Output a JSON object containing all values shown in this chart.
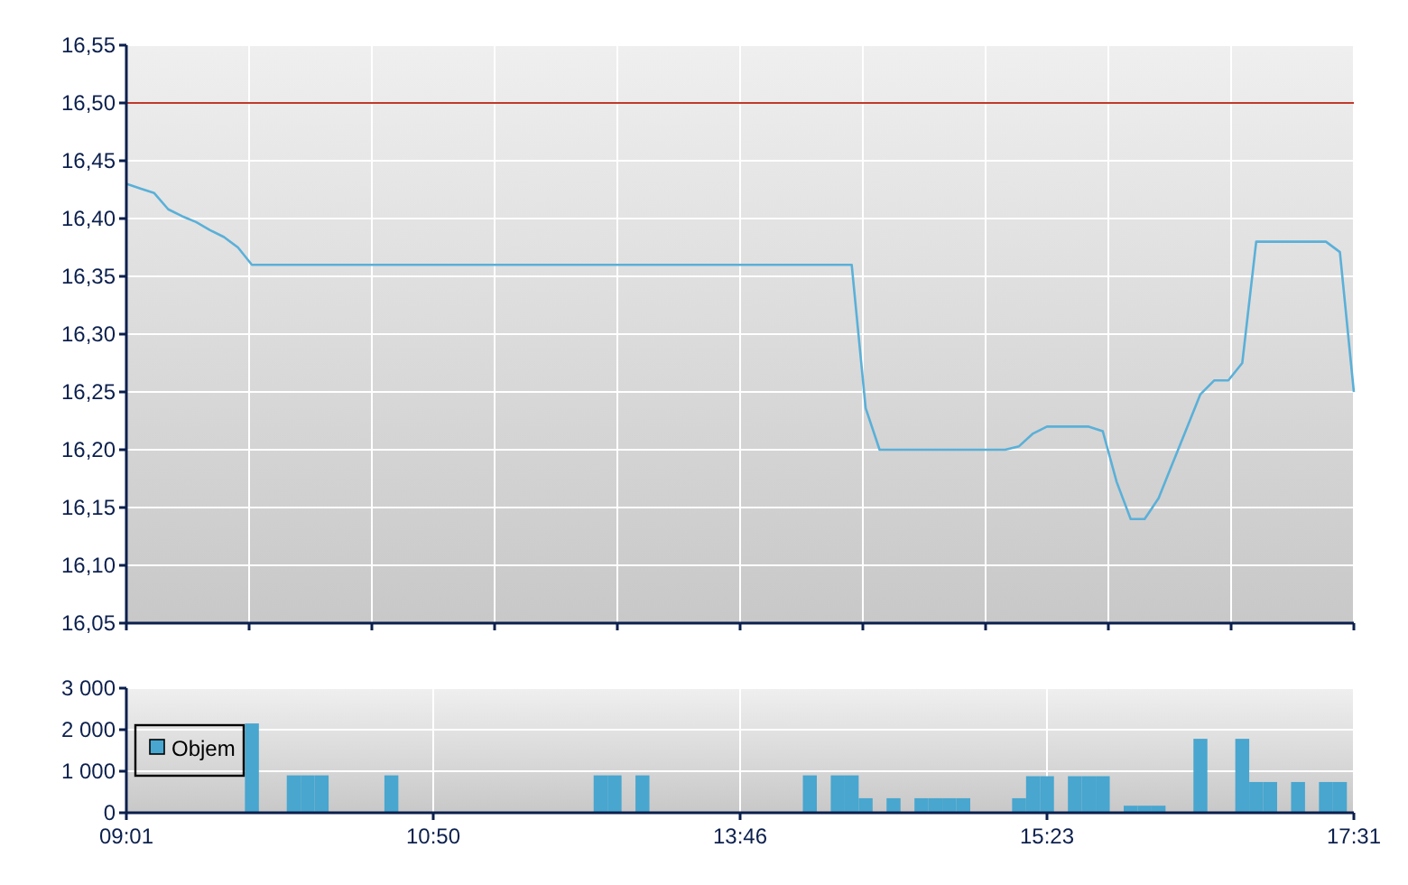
{
  "chart_data": [
    {
      "type": "line",
      "categories": [
        null,
        null,
        null,
        null,
        null,
        null,
        null,
        null,
        null,
        null,
        null,
        null,
        null,
        null,
        null,
        null,
        null,
        null,
        null,
        null,
        null,
        null,
        null,
        null,
        null,
        null,
        null,
        null,
        null,
        null,
        null,
        null,
        null,
        null,
        null,
        null,
        null,
        null,
        null,
        null,
        null,
        null,
        null,
        null,
        null,
        null,
        null,
        null,
        null,
        null,
        null,
        null,
        null,
        null,
        null,
        null,
        null,
        null,
        null,
        null,
        null,
        null,
        null,
        null,
        null,
        null,
        null,
        null,
        null,
        null,
        null,
        null,
        null,
        null,
        null,
        null,
        null,
        null,
        null,
        null,
        null,
        null,
        null,
        null,
        null,
        null,
        null,
        null,
        null
      ],
      "series": [
        {
          "color": "#5ab0d8",
          "values": [
            16.43,
            16.426,
            16.422,
            16.408,
            16.402,
            16.397,
            16.39,
            16.384,
            16.375,
            16.36,
            16.36,
            16.36,
            16.36,
            16.36,
            16.36,
            16.36,
            16.36,
            16.36,
            16.36,
            16.36,
            16.36,
            16.36,
            16.36,
            16.36,
            16.36,
            16.36,
            16.36,
            16.36,
            16.36,
            16.36,
            16.36,
            16.36,
            16.36,
            16.36,
            16.36,
            16.36,
            16.36,
            16.36,
            16.36,
            16.36,
            16.36,
            16.36,
            16.36,
            16.36,
            16.36,
            16.36,
            16.36,
            16.36,
            16.36,
            16.36,
            16.36,
            16.36,
            16.36,
            16.236,
            16.2,
            16.2,
            16.2,
            16.2,
            16.2,
            16.2,
            16.2,
            16.2,
            16.2,
            16.2,
            16.203,
            16.214,
            16.22,
            16.22,
            16.22,
            16.22,
            16.216,
            16.172,
            16.14,
            16.14,
            16.158,
            16.188,
            16.218,
            16.248,
            16.26,
            16.26,
            16.275,
            16.38,
            16.38,
            16.38,
            16.38,
            16.38,
            16.38,
            16.371,
            16.25
          ]
        }
      ],
      "ylim": [
        16.05,
        16.55
      ],
      "yticks": [
        {
          "value": 16.05,
          "label": "16,05"
        },
        {
          "value": 16.1,
          "label": "16,10"
        },
        {
          "value": 16.15,
          "label": "16,15"
        },
        {
          "value": 16.2,
          "label": "16,20"
        },
        {
          "value": 16.25,
          "label": "16,25"
        },
        {
          "value": 16.3,
          "label": "16,30"
        },
        {
          "value": 16.35,
          "label": "16,35"
        },
        {
          "value": 16.4,
          "label": "16,40"
        },
        {
          "value": 16.45,
          "label": "16,45"
        },
        {
          "value": 16.5,
          "label": "16,50"
        },
        {
          "value": 16.55,
          "label": "16,55"
        }
      ],
      "ref_lines": [
        {
          "axis": "y",
          "value": 16.5,
          "color": "#c0392b"
        }
      ],
      "grid": true
    },
    {
      "type": "bar",
      "categories": [
        "09:01",
        null,
        null,
        null,
        null,
        null,
        null,
        null,
        null,
        null,
        null,
        null,
        null,
        null,
        null,
        null,
        null,
        null,
        null,
        null,
        null,
        null,
        "10:50",
        null,
        null,
        null,
        null,
        null,
        null,
        null,
        null,
        null,
        null,
        null,
        null,
        null,
        null,
        null,
        null,
        null,
        null,
        null,
        null,
        null,
        "13:46",
        null,
        null,
        null,
        null,
        null,
        null,
        null,
        null,
        null,
        null,
        null,
        null,
        null,
        null,
        null,
        null,
        null,
        null,
        null,
        null,
        null,
        "15:23",
        null,
        null,
        null,
        null,
        null,
        null,
        null,
        null,
        null,
        null,
        null,
        null,
        null,
        null,
        null,
        null,
        null,
        null,
        null,
        null,
        null,
        "17:31"
      ],
      "series": [
        {
          "name": "Objem",
          "color": "#48a6cf",
          "values": [
            null,
            null,
            null,
            null,
            null,
            null,
            null,
            null,
            null,
            2150,
            null,
            null,
            900,
            900,
            900,
            null,
            null,
            null,
            null,
            900,
            null,
            null,
            null,
            null,
            null,
            null,
            null,
            null,
            null,
            null,
            null,
            null,
            null,
            null,
            900,
            900,
            null,
            900,
            null,
            null,
            null,
            null,
            null,
            null,
            null,
            null,
            null,
            null,
            null,
            900,
            null,
            900,
            900,
            350,
            null,
            350,
            null,
            350,
            350,
            350,
            350,
            null,
            null,
            null,
            350,
            880,
            880,
            null,
            880,
            880,
            880,
            null,
            170,
            170,
            170,
            null,
            null,
            1780,
            null,
            null,
            1780,
            740,
            740,
            null,
            740,
            null,
            740,
            740,
            null
          ]
        }
      ],
      "ylim": [
        0,
        3000
      ],
      "yticks": [
        {
          "value": 0,
          "label": "0"
        },
        {
          "value": 1000,
          "label": "1 000"
        },
        {
          "value": 2000,
          "label": "2 000"
        },
        {
          "value": 3000,
          "label": "3 000"
        }
      ],
      "grid": true,
      "legend": "left"
    }
  ]
}
